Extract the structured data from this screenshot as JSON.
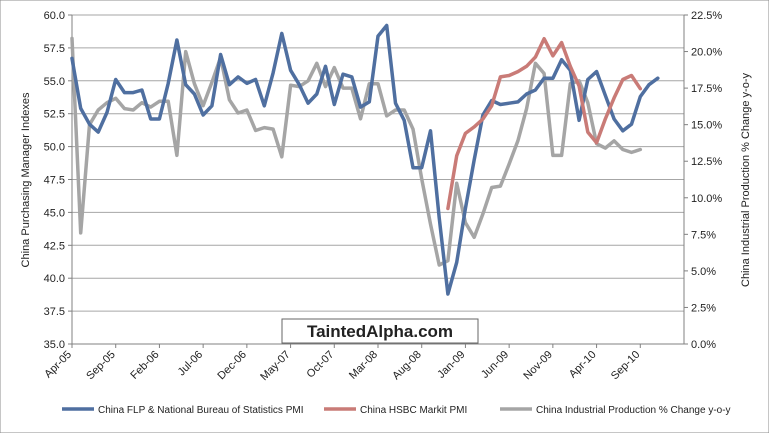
{
  "chart_data": {
    "type": "line",
    "ylabel": "China Purchasing Manager Indexes",
    "y2label": "China Industrial Production % Change y-o-y",
    "ylim": [
      35.0,
      60.0
    ],
    "y2lim": [
      0.0,
      22.5
    ],
    "yticks": [
      "35.0",
      "37.5",
      "40.0",
      "42.5",
      "45.0",
      "47.5",
      "50.0",
      "52.5",
      "55.0",
      "57.5",
      "60.0"
    ],
    "y2ticks": [
      "0.0%",
      "2.5%",
      "5.0%",
      "7.5%",
      "10.0%",
      "12.5%",
      "15.0%",
      "17.5%",
      "20.0%",
      "22.5%"
    ],
    "xticks": [
      "Apr-05",
      "Sep-05",
      "Feb-06",
      "Jul-06",
      "Dec-06",
      "May-07",
      "Oct-07",
      "Mar-08",
      "Aug-08",
      "Jan-09",
      "Jun-09",
      "Nov-09",
      "Apr-10",
      "Sep-10"
    ],
    "x_range": [
      "Apr-05",
      "Feb-11"
    ],
    "grid": true,
    "legend_position": "bottom",
    "watermark": "TaintedAlpha.com",
    "colors": {
      "grid": "#a6a6a6",
      "axis": "#808080"
    },
    "series": [
      {
        "name": "China FLP & National Bureau of Statistics PMI",
        "axis": "left",
        "color": "#4f6fa0",
        "start": "Apr-05",
        "values": [
          56.7,
          52.9,
          51.7,
          51.1,
          52.6,
          55.1,
          54.1,
          54.1,
          54.3,
          52.1,
          52.1,
          54.8,
          58.1,
          54.7,
          54.0,
          52.4,
          53.1,
          57.0,
          54.7,
          55.3,
          54.8,
          55.1,
          53.1,
          55.6,
          58.6,
          55.8,
          54.7,
          53.3,
          54.0,
          56.1,
          53.2,
          55.5,
          55.3,
          53.0,
          53.4,
          58.4,
          59.2,
          53.3,
          52.0,
          48.4,
          48.4,
          51.2,
          44.6,
          38.8,
          41.2,
          45.3,
          49.0,
          52.4,
          53.5,
          53.2,
          53.3,
          53.4,
          54.0,
          54.3,
          55.2,
          55.2,
          56.6,
          55.8,
          52.0,
          55.1,
          55.7,
          53.9,
          52.1,
          51.2,
          51.7,
          53.8,
          54.7,
          55.2
        ]
      },
      {
        "name": "China HSBC  Markit PMI",
        "axis": "left",
        "color": "#c97b77",
        "start": "Nov-08",
        "values": [
          45.3,
          49.3,
          51.0,
          51.5,
          52.1,
          53.1,
          55.3,
          55.4,
          55.7,
          56.1,
          56.8,
          58.2,
          56.9,
          57.9,
          56.1,
          54.6,
          51.1,
          50.3,
          52.1,
          53.7,
          55.1,
          55.4,
          54.4
        ]
      },
      {
        "name": "China Industrial Production % Change y-o-y",
        "axis": "right",
        "color": "#a5a5a5",
        "start": "Apr-05",
        "values": [
          20.9,
          7.6,
          15.0,
          16.0,
          16.5,
          16.8,
          16.1,
          16.0,
          16.5,
          16.2,
          16.6,
          16.6,
          12.9,
          20.0,
          17.8,
          16.3,
          17.9,
          19.6,
          16.7,
          15.8,
          16.0,
          14.6,
          14.8,
          14.7,
          12.8,
          17.7,
          17.6,
          18.0,
          19.2,
          17.6,
          18.9,
          17.5,
          17.5,
          15.4,
          17.8,
          17.8,
          15.6,
          16.0,
          16.0,
          14.7,
          11.3,
          8.2,
          5.4,
          5.7,
          11.0,
          8.3,
          7.3,
          8.9,
          10.7,
          10.8,
          12.3,
          13.9,
          16.1,
          19.2,
          18.5,
          12.9,
          12.9,
          17.8,
          18.0,
          16.5,
          13.7,
          13.4,
          13.9,
          13.3,
          13.1,
          13.3
        ]
      }
    ]
  }
}
